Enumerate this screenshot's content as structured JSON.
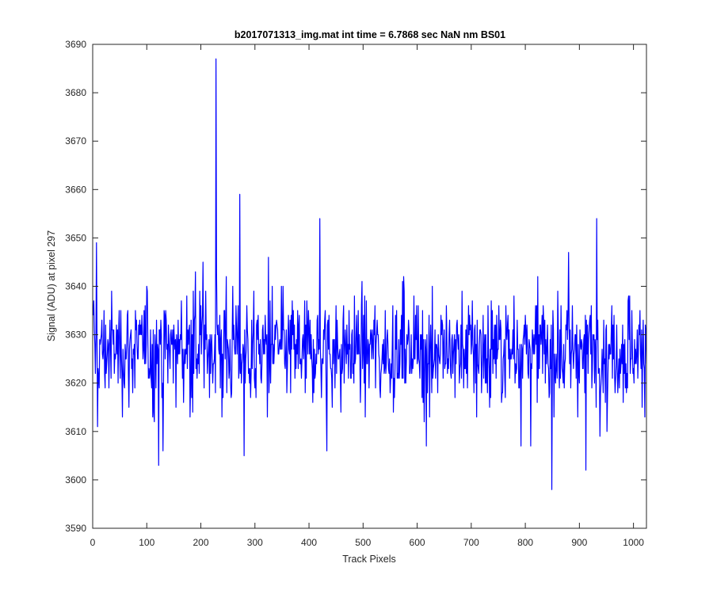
{
  "chart_data": {
    "type": "line",
    "title": "b2017071313_img.mat int time = 6.7868 sec  NaN nm BS01",
    "xlabel": "Track Pixels",
    "ylabel": "Signal (ADU) at pixel 297",
    "xlim": [
      0,
      1024
    ],
    "ylim": [
      3590,
      3690
    ],
    "x_ticks": [
      0,
      100,
      200,
      300,
      400,
      500,
      600,
      700,
      800,
      900,
      1000
    ],
    "y_ticks": [
      3590,
      3600,
      3610,
      3620,
      3630,
      3640,
      3650,
      3660,
      3670,
      3680,
      3690
    ],
    "grid": false,
    "series": [
      {
        "color": "#0000ff",
        "x_start": 1,
        "x_step": 1,
        "notable_points": [
          {
            "x": 7,
            "y": 3649
          },
          {
            "x": 9,
            "y": 3611
          },
          {
            "x": 122,
            "y": 3603
          },
          {
            "x": 130,
            "y": 3606
          },
          {
            "x": 228,
            "y": 3687
          },
          {
            "x": 272,
            "y": 3659
          },
          {
            "x": 280,
            "y": 3605
          },
          {
            "x": 420,
            "y": 3654
          },
          {
            "x": 433,
            "y": 3606
          },
          {
            "x": 849,
            "y": 3598
          },
          {
            "x": 912,
            "y": 3602
          },
          {
            "x": 932,
            "y": 3654
          }
        ],
        "y_mean": 3627,
        "y_spread": 5.5
      }
    ]
  }
}
